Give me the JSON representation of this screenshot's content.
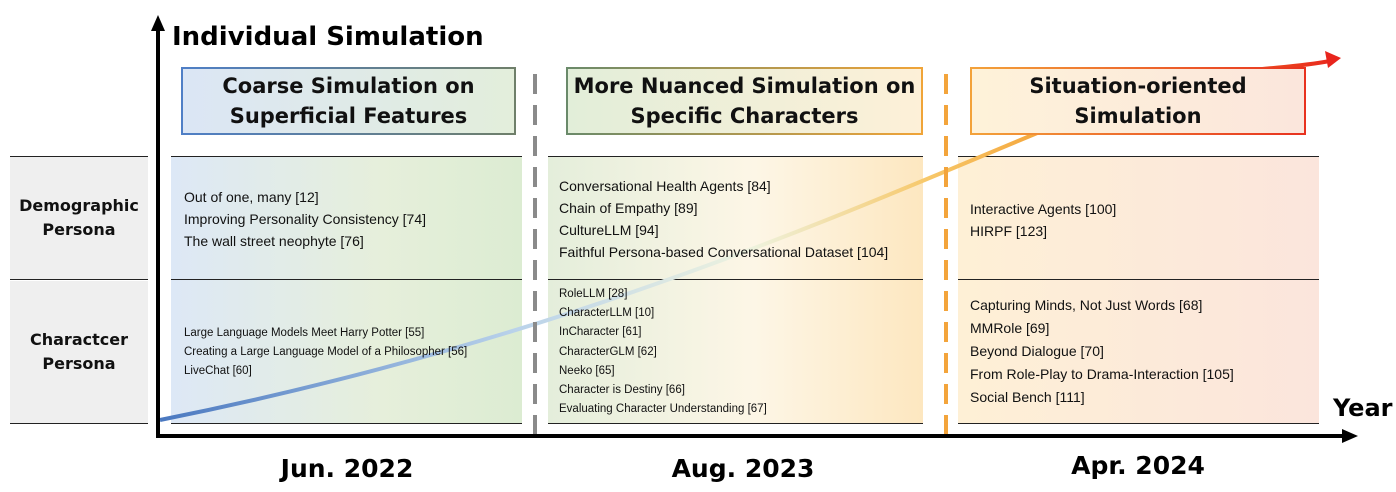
{
  "y_axis_title": "Individual Simulation",
  "x_axis_title": "Year",
  "phases": [
    {
      "title_lines": [
        "Coarse Simulation on",
        "Superficial Features"
      ],
      "color": "#5b87c9"
    },
    {
      "title_lines": [
        "More Nuanced Simulation on",
        "Specific Characters"
      ],
      "color": "#f0a438"
    },
    {
      "title_lines": [
        "Situation-oriented",
        "Simulation"
      ],
      "color": "#e8402a"
    }
  ],
  "rows": [
    {
      "label_lines": [
        "Demographic",
        "Persona"
      ]
    },
    {
      "label_lines": [
        "Charactcer",
        "Persona"
      ]
    }
  ],
  "cells": {
    "demographic": [
      [
        "Out of one, many [12]",
        "Improving Personality Consistency [74]",
        "The wall street neophyte [76]"
      ],
      [
        "Conversational Health Agents [84]",
        "Chain of Empathy [89]",
        "CultureLLM [94]",
        "Faithful Persona-based Conversational Dataset [104]"
      ],
      [
        "Interactive Agents [100]",
        "HIRPF [123]"
      ]
    ],
    "character": [
      [
        "Large Language Models Meet Harry Potter [55]",
        "Creating a Large Language Model of a Philosopher [56]",
        "LiveChat [60]"
      ],
      [
        "RoleLLM [28]",
        "CharacterLLM [10]",
        "InCharacter [61]",
        "CharacterGLM [62]",
        "Neeko [65]",
        "Character is Destiny [66]",
        "Evaluating Character Understanding [67]"
      ],
      [
        "Capturing Minds, Not Just Words [68]",
        "MMRole [69]",
        "Beyond Dialogue [70]",
        "From Role-Play to Drama-Interaction [105]",
        "Social Bench [111]"
      ]
    ]
  },
  "dates": [
    "Jun. 2022",
    "Aug. 2023",
    "Apr. 2024"
  ]
}
